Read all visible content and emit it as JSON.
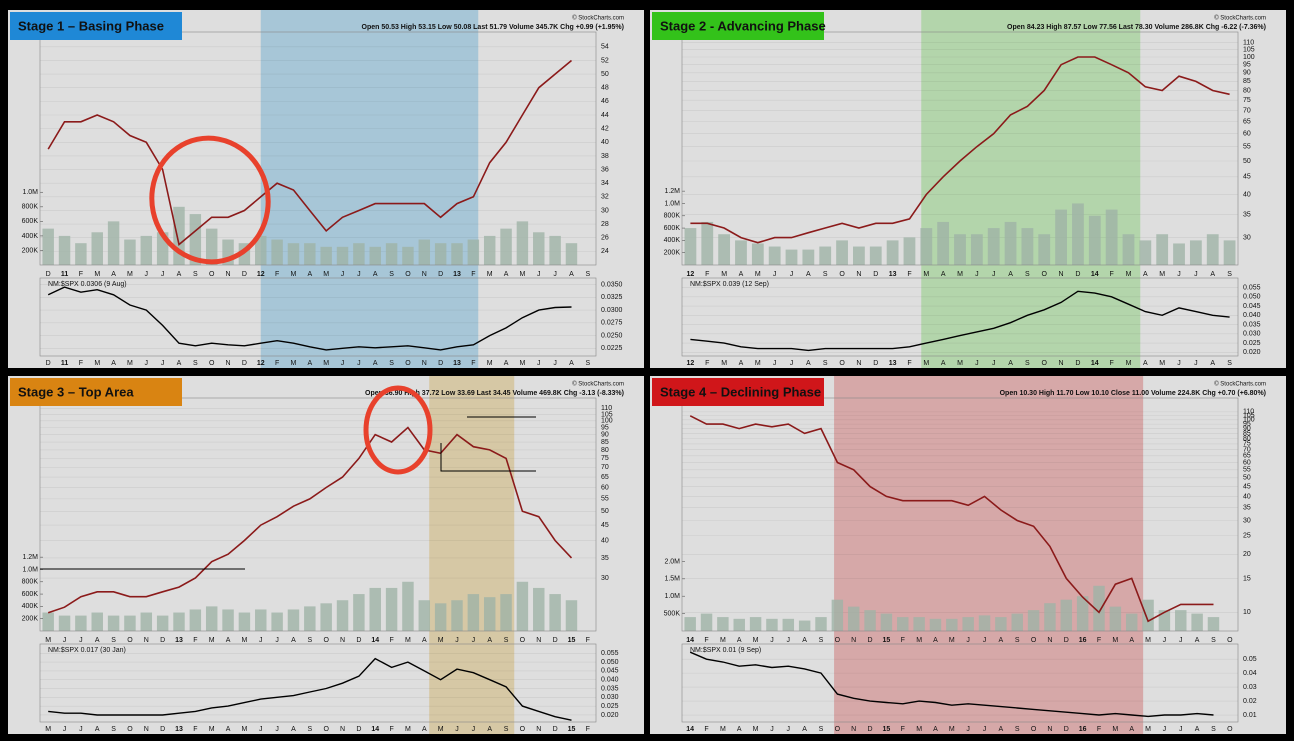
{
  "chart_data": [
    {
      "type": "line",
      "title": "Stage 1 – Basing Phase",
      "source": "© StockCharts.com",
      "header": "Open 50.53  High 53.15  Low 50.08  Last 51.79  Volume 345.7K  Chg +0.99 (+1.95%)",
      "categories": [
        "D",
        "11",
        "F",
        "M",
        "A",
        "M",
        "J",
        "J",
        "A",
        "S",
        "O",
        "N",
        "D",
        "12",
        "F",
        "M",
        "A",
        "M",
        "J",
        "J",
        "A",
        "S",
        "O",
        "N",
        "D",
        "13",
        "F",
        "M",
        "A",
        "M",
        "J",
        "J",
        "A",
        "S"
      ],
      "values": [
        39,
        43,
        43,
        44,
        43,
        41,
        40,
        36,
        25,
        27,
        29,
        29,
        30,
        32,
        34,
        33,
        30,
        27,
        29,
        30,
        31,
        31,
        31,
        31,
        29,
        31,
        32,
        37,
        40,
        44,
        48,
        50,
        52,
        null
      ],
      "color": "#8b1a1a",
      "log_scale": false,
      "grid": true,
      "ylim": [
        22,
        55
      ],
      "yticks": [
        24,
        26,
        28,
        30,
        32,
        34,
        36,
        38,
        40,
        42,
        44,
        46,
        48,
        50,
        52,
        54
      ],
      "volume": {
        "color": "#9fb3a6",
        "ylim": [
          0,
          1100000
        ],
        "values": [
          500000,
          400000,
          300000,
          450000,
          600000,
          350000,
          400000,
          450000,
          800000,
          700000,
          500000,
          350000,
          300000,
          400000,
          350000,
          300000,
          300000,
          250000,
          250000,
          300000,
          250000,
          300000,
          250000,
          350000,
          300000,
          300000,
          350000,
          400000,
          500000,
          600000,
          450000,
          400000,
          300000,
          null
        ],
        "yticks": [
          {
            "value": 200000,
            "label": "200K"
          },
          {
            "value": 400000,
            "label": "400K"
          },
          {
            "value": 600000,
            "label": "600K"
          },
          {
            "value": 800000,
            "label": "800K"
          },
          {
            "value": 1000000,
            "label": "1.0M"
          }
        ]
      },
      "rs": {
        "label": "NM:$SPX 0.0306 (9 Aug)",
        "color": "#000000",
        "ylim": [
          0.021,
          0.0355
        ],
        "values": [
          0.033,
          0.0345,
          0.0335,
          0.034,
          0.033,
          0.031,
          0.03,
          0.027,
          0.0235,
          0.023,
          0.0235,
          0.0232,
          0.023,
          0.0235,
          0.024,
          0.0235,
          0.0228,
          0.0222,
          0.0225,
          0.0228,
          0.0226,
          0.0228,
          0.023,
          0.0226,
          0.0222,
          0.0228,
          0.0232,
          0.025,
          0.0265,
          0.0285,
          0.03,
          0.0305,
          0.0306,
          null
        ],
        "yticks": [
          {
            "value": 0.0225,
            "label": "0.0225"
          },
          {
            "value": 0.025,
            "label": "0.0250"
          },
          {
            "value": 0.0275,
            "label": "0.0275"
          },
          {
            "value": 0.03,
            "label": "0.0300"
          },
          {
            "value": 0.0325,
            "label": "0.0325"
          },
          {
            "value": 0.035,
            "label": "0.0350"
          }
        ]
      }
    },
    {
      "type": "line",
      "title": "Stage 2 - Advancing Phase",
      "source": "© StockCharts.com",
      "header": "Open 84.23  High 87.57  Low 77.56  Last 78.30  Volume 286.8K  Chg -6.22 (-7.36%)",
      "categories": [
        "12",
        "F",
        "M",
        "A",
        "M",
        "J",
        "J",
        "A",
        "S",
        "O",
        "N",
        "D",
        "13",
        "F",
        "M",
        "A",
        "M",
        "J",
        "J",
        "A",
        "S",
        "O",
        "N",
        "D",
        "14",
        "F",
        "M",
        "A",
        "M",
        "J",
        "J",
        "A",
        "S"
      ],
      "values": [
        33,
        33,
        32,
        30,
        29,
        30,
        30,
        31,
        32,
        33,
        32,
        33,
        33,
        34,
        40,
        45,
        50,
        55,
        60,
        68,
        72,
        80,
        95,
        100,
        100,
        95,
        90,
        82,
        80,
        88,
        85,
        80,
        78
      ],
      "color": "#8b1a1a",
      "log_scale": true,
      "grid": true,
      "ylim": [
        25,
        112
      ],
      "yticks": [
        30,
        35,
        40,
        45,
        50,
        55,
        60,
        65,
        70,
        75,
        80,
        85,
        90,
        95,
        100,
        105,
        110
      ],
      "volume": {
        "color": "#9fb3a6",
        "ylim": [
          0,
          1300000
        ],
        "values": [
          600000,
          700000,
          500000,
          400000,
          350000,
          300000,
          250000,
          250000,
          300000,
          400000,
          300000,
          300000,
          400000,
          450000,
          600000,
          700000,
          500000,
          500000,
          600000,
          700000,
          600000,
          500000,
          900000,
          1000000,
          800000,
          900000,
          500000,
          400000,
          500000,
          350000,
          400000,
          500000,
          400000
        ],
        "yticks": [
          {
            "value": 200000,
            "label": "200K"
          },
          {
            "value": 400000,
            "label": "400K"
          },
          {
            "value": 600000,
            "label": "600K"
          },
          {
            "value": 800000,
            "label": "800K"
          },
          {
            "value": 1000000,
            "label": "1.0M"
          },
          {
            "value": 1200000,
            "label": "1.2M"
          }
        ]
      },
      "rs": {
        "label": "NM:$SPX 0.039 (12 Sep)",
        "color": "#000000",
        "ylim": [
          0.018,
          0.058
        ],
        "values": [
          0.027,
          0.026,
          0.025,
          0.023,
          0.022,
          0.022,
          0.022,
          0.021,
          0.022,
          0.022,
          0.022,
          0.022,
          0.022,
          0.023,
          0.025,
          0.027,
          0.029,
          0.031,
          0.033,
          0.036,
          0.04,
          0.043,
          0.047,
          0.053,
          0.052,
          0.05,
          0.046,
          0.042,
          0.04,
          0.044,
          0.042,
          0.04,
          0.039
        ],
        "yticks": [
          {
            "value": 0.02,
            "label": "0.020"
          },
          {
            "value": 0.025,
            "label": "0.025"
          },
          {
            "value": 0.03,
            "label": "0.030"
          },
          {
            "value": 0.035,
            "label": "0.035"
          },
          {
            "value": 0.04,
            "label": "0.040"
          },
          {
            "value": 0.045,
            "label": "0.045"
          },
          {
            "value": 0.05,
            "label": "0.050"
          },
          {
            "value": 0.055,
            "label": "0.055"
          }
        ]
      }
    },
    {
      "type": "line",
      "title": "Stage 3 – Top Area",
      "source": "© StockCharts.com",
      "header": "Open 36.90  High 37.72  Low 33.69  Last 34.45  Volume 469.8K  Chg -3.13 (-8.33%)",
      "categories": [
        "M",
        "J",
        "J",
        "A",
        "S",
        "O",
        "N",
        "D",
        "13",
        "F",
        "M",
        "A",
        "M",
        "J",
        "J",
        "A",
        "S",
        "O",
        "N",
        "D",
        "14",
        "F",
        "M",
        "A",
        "M",
        "J",
        "J",
        "A",
        "S",
        "O",
        "N",
        "D",
        "15",
        "F"
      ],
      "values": [
        23,
        24,
        26,
        27,
        27,
        26,
        26,
        27,
        28,
        30,
        34,
        36,
        40,
        45,
        48,
        52,
        55,
        60,
        65,
        75,
        90,
        85,
        95,
        80,
        78,
        90,
        82,
        80,
        75,
        50,
        48,
        40,
        35,
        null
      ],
      "color": "#8b1a1a",
      "log_scale": true,
      "grid": true,
      "ylim": [
        20,
        112
      ],
      "yticks": [
        30,
        35,
        40,
        45,
        50,
        55,
        60,
        65,
        70,
        75,
        80,
        85,
        90,
        95,
        100,
        105,
        110
      ],
      "volume": {
        "color": "#9fb3a6",
        "ylim": [
          0,
          1300000
        ],
        "values": [
          300000,
          250000,
          250000,
          300000,
          250000,
          250000,
          300000,
          250000,
          300000,
          350000,
          400000,
          350000,
          300000,
          350000,
          300000,
          350000,
          400000,
          450000,
          500000,
          600000,
          700000,
          700000,
          800000,
          500000,
          450000,
          500000,
          600000,
          550000,
          600000,
          800000,
          700000,
          600000,
          500000,
          null
        ],
        "yticks": [
          {
            "value": 200000,
            "label": "200K"
          },
          {
            "value": 400000,
            "label": "400K"
          },
          {
            "value": 600000,
            "label": "600K"
          },
          {
            "value": 800000,
            "label": "800K"
          },
          {
            "value": 1000000,
            "label": "1.0M"
          },
          {
            "value": 1200000,
            "label": "1.2M"
          }
        ]
      },
      "rs": {
        "label": "NM:$SPX 0.017 (30 Jan)",
        "color": "#000000",
        "ylim": [
          0.016,
          0.058
        ],
        "values": [
          0.022,
          0.021,
          0.021,
          0.02,
          0.02,
          0.02,
          0.02,
          0.02,
          0.021,
          0.022,
          0.024,
          0.025,
          0.027,
          0.029,
          0.03,
          0.031,
          0.033,
          0.035,
          0.038,
          0.042,
          0.052,
          0.047,
          0.05,
          0.045,
          0.04,
          0.046,
          0.044,
          0.04,
          0.036,
          0.025,
          0.022,
          0.019,
          0.017,
          null
        ],
        "yticks": [
          {
            "value": 0.02,
            "label": "0.020"
          },
          {
            "value": 0.025,
            "label": "0.025"
          },
          {
            "value": 0.03,
            "label": "0.030"
          },
          {
            "value": 0.035,
            "label": "0.035"
          },
          {
            "value": 0.04,
            "label": "0.040"
          },
          {
            "value": 0.045,
            "label": "0.045"
          },
          {
            "value": 0.05,
            "label": "0.050"
          },
          {
            "value": 0.055,
            "label": "0.055"
          }
        ]
      }
    },
    {
      "type": "line",
      "title": "Stage 4 – Declining Phase",
      "source": "© StockCharts.com",
      "header": "Open 10.30  High 11.70  Low 10.10  Close 11.00  Volume 224.8K  Chg +0.70 (+6.80%)",
      "categories": [
        "14",
        "F",
        "M",
        "A",
        "M",
        "J",
        "J",
        "A",
        "S",
        "O",
        "N",
        "D",
        "15",
        "F",
        "M",
        "A",
        "M",
        "J",
        "J",
        "A",
        "S",
        "O",
        "N",
        "D",
        "16",
        "F",
        "M",
        "A",
        "M",
        "J",
        "J",
        "A",
        "S",
        "O"
      ],
      "values": [
        105,
        95,
        95,
        90,
        95,
        92,
        95,
        85,
        90,
        60,
        55,
        45,
        40,
        38,
        38,
        38,
        38,
        36,
        40,
        34,
        30,
        28,
        22,
        15,
        12,
        10,
        14,
        15,
        9,
        10,
        11,
        11,
        11,
        null
      ],
      "color": "#8b1a1a",
      "log_scale": true,
      "grid": true,
      "ylim": [
        8,
        118
      ],
      "yticks": [
        10,
        15,
        20,
        25,
        30,
        35,
        40,
        45,
        50,
        55,
        60,
        65,
        70,
        75,
        80,
        85,
        90,
        95,
        100,
        105,
        110
      ],
      "volume": {
        "color": "#9fb3a6",
        "ylim": [
          0,
          2300000
        ],
        "values": [
          400000,
          500000,
          400000,
          350000,
          400000,
          350000,
          350000,
          300000,
          400000,
          900000,
          700000,
          600000,
          500000,
          400000,
          400000,
          350000,
          350000,
          400000,
          450000,
          400000,
          500000,
          600000,
          800000,
          900000,
          1000000,
          1300000,
          700000,
          500000,
          900000,
          600000,
          600000,
          500000,
          400000,
          null
        ],
        "yticks": [
          {
            "value": 500000,
            "label": "500K"
          },
          {
            "value": 1000000,
            "label": "1.0M"
          },
          {
            "value": 1500000,
            "label": "1.5M"
          },
          {
            "value": 2000000,
            "label": "2.0M"
          }
        ]
      },
      "rs": {
        "label": "NM:$SPX 0.01 (9 Sep)",
        "color": "#000000",
        "ylim": [
          0.005,
          0.058
        ],
        "values": [
          0.055,
          0.05,
          0.048,
          0.045,
          0.046,
          0.044,
          0.045,
          0.043,
          0.04,
          0.025,
          0.022,
          0.02,
          0.019,
          0.018,
          0.02,
          0.019,
          0.017,
          0.018,
          0.017,
          0.016,
          0.015,
          0.014,
          0.013,
          0.012,
          0.011,
          0.01,
          0.011,
          0.01,
          0.009,
          0.01,
          0.01,
          0.011,
          0.01,
          null
        ],
        "yticks": [
          0.01,
          0.02,
          0.03,
          0.04,
          0.05
        ]
      }
    }
  ]
}
